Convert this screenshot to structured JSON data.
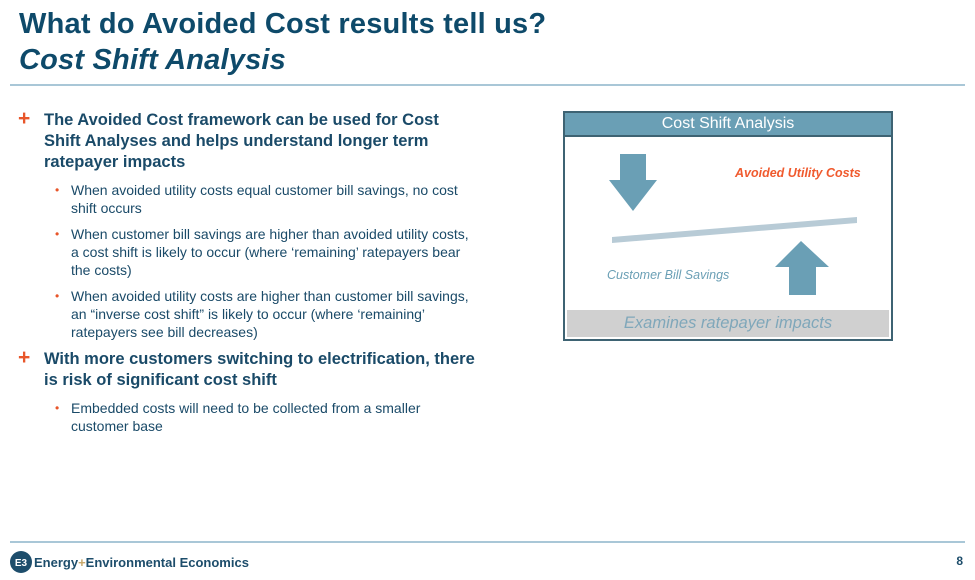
{
  "header": {
    "title": "What do Avoided Cost results tell us?",
    "subtitle": "Cost Shift Analysis"
  },
  "bullets": [
    {
      "text": "The Avoided Cost framework can be used for Cost Shift Analyses and helps understand longer term ratepayer impacts",
      "sub": [
        "When avoided utility costs equal customer bill savings, no cost shift occurs",
        "When customer bill savings are higher than avoided utility costs, a cost shift is likely to occur (where ‘remaining’ ratepayers bear the costs)",
        "When avoided utility costs are higher than customer bill savings, an “inverse cost shift” is likely to occur (where ‘remaining’ ratepayers see bill decreases)"
      ]
    },
    {
      "text": "With more customers switching to electrification, there is risk of significant cost shift",
      "sub": [
        "Embedded costs will need to be collected from a smaller customer base"
      ]
    }
  ],
  "bullet_symbol": "+",
  "sub_bullet_symbol": "•",
  "diagram": {
    "title": "Cost Shift Analysis",
    "avoided_label": "Avoided Utility Costs",
    "savings_label": "Customer Bill Savings",
    "footer": "Examines ratepayer impacts",
    "colors": {
      "header": "#6a9fb5",
      "arrow": "#6a9fb5",
      "accent": "#f05a2e",
      "beam": "#b8cbd6"
    }
  },
  "footer": {
    "brand_a": "Energy",
    "brand_plus": "+",
    "brand_b": "Environmental Economics",
    "logo_text": "E3",
    "page": "8"
  }
}
